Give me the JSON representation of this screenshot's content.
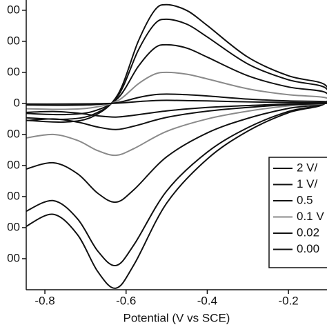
{
  "chart_data": {
    "type": "line",
    "x_label": "Potential (V vs SCE)",
    "x": [
      -0.85,
      -0.75,
      -0.68,
      -0.62,
      -0.57,
      -0.53,
      -0.5,
      -0.45,
      -0.4,
      -0.3,
      -0.2,
      -0.11,
      -0.11,
      -0.2,
      -0.3,
      -0.4,
      -0.5,
      -0.58,
      -0.625,
      -0.67,
      -0.72,
      -0.78,
      -0.85
    ],
    "series": [
      {
        "name": "2 V/",
        "color": "#111111",
        "values": [
          -54,
          -60,
          -41,
          29,
          200,
          299,
          318,
          299,
          251,
          149,
          89,
          60,
          0,
          -30,
          -89,
          -179,
          -321,
          -518,
          -595,
          -541,
          -422,
          -357,
          -399
        ]
      },
      {
        "name": "1 V/",
        "color": "#111111",
        "values": [
          -46,
          -51,
          -35,
          24,
          171,
          255,
          271,
          255,
          214,
          127,
          76,
          51,
          0,
          -26,
          -78,
          -157,
          -282,
          -454,
          -522,
          -475,
          -371,
          -313,
          -350
        ]
      },
      {
        "name": "0.5",
        "color": "#111111",
        "values": [
          -32,
          -36,
          -25,
          17,
          119,
          178,
          189,
          178,
          149,
          89,
          53,
          36,
          0,
          -16,
          -48,
          -95,
          -172,
          -277,
          -318,
          -289,
          -226,
          -191,
          -213
        ]
      },
      {
        "name": "0.1 V",
        "color": "#8a8a8a",
        "values": [
          -17,
          -19,
          -13,
          9,
          63,
          94,
          100,
          94,
          79,
          47,
          28,
          19,
          0,
          -8,
          -25,
          -50,
          -90,
          -145,
          -167,
          -152,
          -119,
          -100,
          -112
        ]
      },
      {
        "name": "0.02",
        "color": "#111111",
        "values": [
          -5,
          -6,
          -4,
          3,
          19,
          28,
          30,
          28,
          24,
          14,
          8,
          6,
          0,
          -4,
          -13,
          -25,
          -45,
          -73,
          -84,
          -76,
          -60,
          -50,
          -56
        ]
      },
      {
        "name": "0.00",
        "color": "#111111",
        "values": [
          -2,
          -2,
          -1,
          1,
          6,
          9,
          10,
          9,
          8,
          5,
          3,
          2,
          0,
          -2,
          -7,
          -13,
          -24,
          -38,
          -44,
          -40,
          -31,
          -26,
          -29
        ]
      }
    ],
    "xlim": [
      -0.846,
      -0.105
    ],
    "xticks": [
      -0.8,
      -0.6,
      -0.4,
      -0.2
    ],
    "ylim": [
      -600,
      333
    ],
    "yticks": [
      {
        "value": 300,
        "label": "00"
      },
      {
        "value": 200,
        "label": "00"
      },
      {
        "value": 100,
        "label": "00"
      },
      0,
      {
        "value": -100,
        "label": "00"
      },
      {
        "value": -200,
        "label": "00"
      },
      {
        "value": -300,
        "label": "00"
      },
      {
        "value": -400,
        "label": "00"
      },
      {
        "value": -500,
        "label": "00"
      }
    ],
    "legend": "lower right"
  }
}
